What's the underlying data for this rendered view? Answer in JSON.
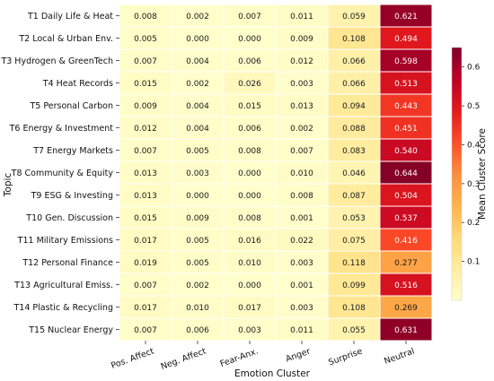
{
  "chart_data": {
    "type": "heatmap",
    "xlabel": "Emotion Cluster",
    "ylabel": "Topic",
    "colorbar_label": "Mean Cluster Score",
    "colormap": "YlOrRd",
    "value_range": [
      0,
      0.65
    ],
    "colorbar_ticks": [
      "0.1",
      "0.2",
      "0.3",
      "0.4",
      "0.5",
      "0.6"
    ],
    "columns": [
      "Pos. Affect",
      "Neg. Affect",
      "Fear-Anx.",
      "Anger",
      "Surprise",
      "Neutral"
    ],
    "rows": [
      "T1 Daily Life & Heat",
      "T2 Local & Urban Env.",
      "T3 Hydrogen & GreenTech",
      "T4 Heat Records",
      "T5 Personal Carbon",
      "T6 Energy & Investment",
      "T7 Energy Markets",
      "T8 Community & Equity",
      "T9 ESG & Investing",
      "T10 Gen. Discussion",
      "T11 Military Emissions",
      "T12 Personal Finance",
      "T13 Agricultural Emiss.",
      "T14 Plastic & Recycling",
      "T15 Nuclear Energy"
    ],
    "values": [
      [
        0.008,
        0.002,
        0.007,
        0.011,
        0.059,
        0.621
      ],
      [
        0.005,
        0.0,
        0.0,
        0.009,
        0.108,
        0.494
      ],
      [
        0.007,
        0.004,
        0.006,
        0.012,
        0.066,
        0.598
      ],
      [
        0.015,
        0.002,
        0.026,
        0.003,
        0.066,
        0.513
      ],
      [
        0.009,
        0.004,
        0.015,
        0.013,
        0.094,
        0.443
      ],
      [
        0.012,
        0.004,
        0.006,
        0.002,
        0.088,
        0.451
      ],
      [
        0.007,
        0.005,
        0.008,
        0.007,
        0.083,
        0.54
      ],
      [
        0.013,
        0.003,
        0.0,
        0.01,
        0.046,
        0.644
      ],
      [
        0.013,
        0.0,
        0.0,
        0.008,
        0.087,
        0.504
      ],
      [
        0.015,
        0.009,
        0.008,
        0.001,
        0.053,
        0.537
      ],
      [
        0.017,
        0.005,
        0.016,
        0.022,
        0.075,
        0.416
      ],
      [
        0.019,
        0.005,
        0.01,
        0.003,
        0.118,
        0.277
      ],
      [
        0.007,
        0.002,
        0.0,
        0.001,
        0.099,
        0.516
      ],
      [
        0.017,
        0.01,
        0.017,
        0.003,
        0.108,
        0.269
      ],
      [
        0.007,
        0.006,
        0.003,
        0.011,
        0.055,
        0.631
      ]
    ]
  }
}
